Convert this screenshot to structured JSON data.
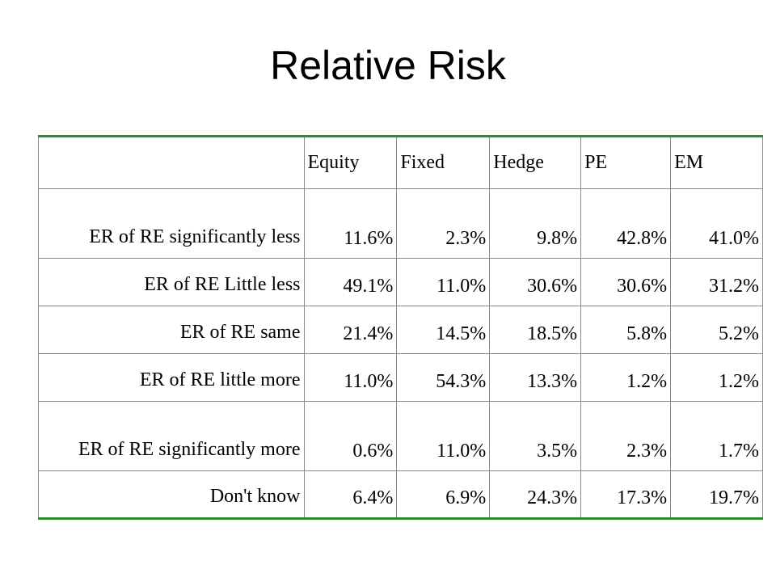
{
  "title": "Relative Risk",
  "table": {
    "columns": [
      "",
      "Equity",
      "Fixed",
      "Hedge",
      "PE",
      "EM"
    ],
    "rows": [
      {
        "label": "ER of RE significantly less",
        "values": [
          "11.6%",
          "2.3%",
          "9.8%",
          "42.8%",
          "41.0%"
        ]
      },
      {
        "label": "ER of RE Little less",
        "values": [
          "49.1%",
          "11.0%",
          "30.6%",
          "30.6%",
          "31.2%"
        ]
      },
      {
        "label": "ER of RE same",
        "values": [
          "21.4%",
          "14.5%",
          "18.5%",
          "5.8%",
          "5.2%"
        ]
      },
      {
        "label": "ER of RE little more",
        "values": [
          "11.0%",
          "54.3%",
          "13.3%",
          "1.2%",
          "1.2%"
        ]
      },
      {
        "label": "ER of RE significantly more",
        "values": [
          "0.6%",
          "11.0%",
          "3.5%",
          "2.3%",
          "1.7%"
        ]
      },
      {
        "label": "Don't know",
        "values": [
          "6.4%",
          "6.9%",
          "24.3%",
          "17.3%",
          "19.7%"
        ]
      }
    ]
  },
  "colors": {
    "table_rule": "#2e8b2e",
    "grid": "#8a8a8a",
    "text": "#000000",
    "background": "#ffffff"
  }
}
